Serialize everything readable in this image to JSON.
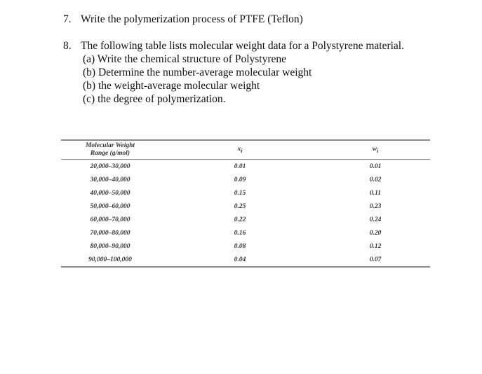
{
  "questions": [
    {
      "number": "7.",
      "text": "Write the polymerization process of PTFE (Teflon)"
    },
    {
      "number": "8.",
      "text": "The following table lists molecular weight data for a Polystyrene material.",
      "parts": [
        "(a) Write the chemical structure of Polystyrene",
        "(b) Determine the number-average molecular weight",
        "(b) the weight-average molecular weight",
        "(c) the degree of polymerization."
      ]
    }
  ],
  "table": {
    "headers": [
      "Molecular Weight",
      "Range (g/mol)",
      "x",
      "i",
      "w",
      "i"
    ],
    "rows": [
      [
        "20,000–30,000",
        "0.01",
        "0.01"
      ],
      [
        "30,000–40,000",
        "0.09",
        "0.02"
      ],
      [
        "40,000–50,000",
        "0.15",
        "0.11"
      ],
      [
        "50,000–60,000",
        "0.25",
        "0.23"
      ],
      [
        "60,000–70,000",
        "0.22",
        "0.24"
      ],
      [
        "70,000–80,000",
        "0.16",
        "0.20"
      ],
      [
        "80,000–90,000",
        "0.08",
        "0.12"
      ],
      [
        "90,000–100,000",
        "0.04",
        "0.07"
      ]
    ]
  }
}
